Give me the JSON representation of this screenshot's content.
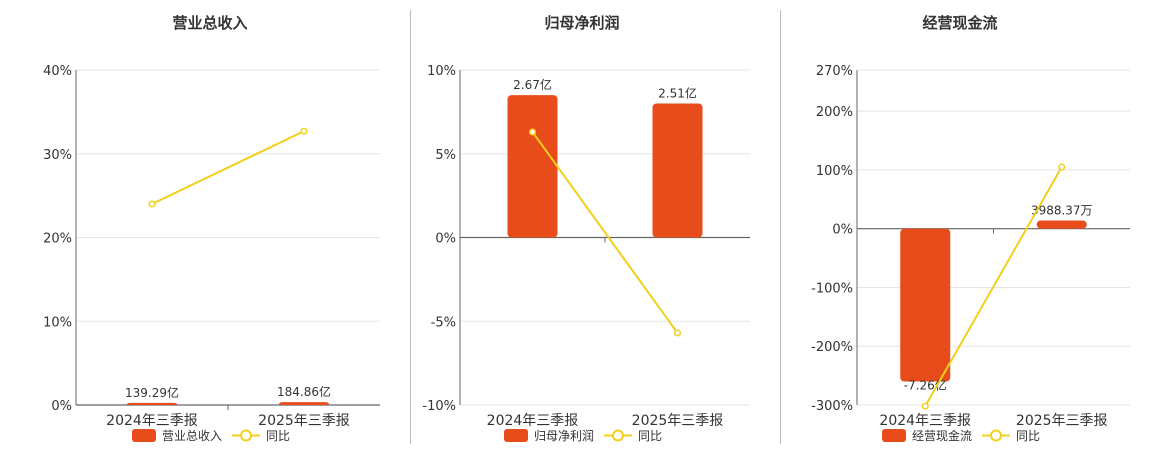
{
  "legend_common": "同比",
  "colors": {
    "bar": "#e84c1a",
    "line": "#f2cf1a",
    "grid": "#e5e5e5",
    "axis": "#666666",
    "text": "#333333"
  },
  "chart_data": [
    {
      "type": "bar",
      "title": "营业总收入",
      "categories": [
        "2024年三季报",
        "2025年三季报"
      ],
      "bar_label": "营业总收入",
      "bar_relative": [
        0.255,
        0.34
      ],
      "bar_value_labels": [
        "139.29亿",
        "184.86亿"
      ],
      "series": [
        {
          "name": "同比",
          "type": "line",
          "values": [
            24,
            32.7
          ]
        }
      ],
      "ylim": [
        0,
        40
      ],
      "yticks": [
        "0%",
        "10%",
        "20%",
        "30%",
        "40%"
      ],
      "grid": true,
      "legend": "bottom"
    },
    {
      "type": "bar",
      "title": "归母净利润",
      "categories": [
        "2024年三季报",
        "2025年三季报"
      ],
      "bar_label": "归母净利润",
      "bar_relative": [
        8.5,
        8.0
      ],
      "bar_value_labels": [
        "2.67亿",
        "2.51亿"
      ],
      "series": [
        {
          "name": "同比",
          "type": "line",
          "values": [
            6.3,
            -5.7
          ]
        }
      ],
      "ylim": [
        -10,
        10
      ],
      "yticks": [
        "-10%",
        "-5%",
        "0%",
        "5%",
        "10%"
      ],
      "grid": true,
      "legend": "bottom"
    },
    {
      "type": "bar",
      "title": "经营现金流",
      "categories": [
        "2024年三季报",
        "2025年三季报"
      ],
      "bar_label": "经营现金流",
      "bar_relative": [
        -260,
        14
      ],
      "bar_value_labels": [
        "-7.26亿",
        "3988.37万"
      ],
      "series": [
        {
          "name": "同比",
          "type": "line",
          "values": [
            -302,
            105
          ]
        }
      ],
      "ylim": [
        -300,
        270
      ],
      "yticks": [
        "-300%",
        "-200%",
        "-100%",
        "0%",
        "100%",
        "200%",
        "270%"
      ],
      "ytick_values": [
        -300,
        -200,
        -100,
        0,
        100,
        200,
        270
      ],
      "grid": true,
      "legend": "bottom"
    }
  ]
}
